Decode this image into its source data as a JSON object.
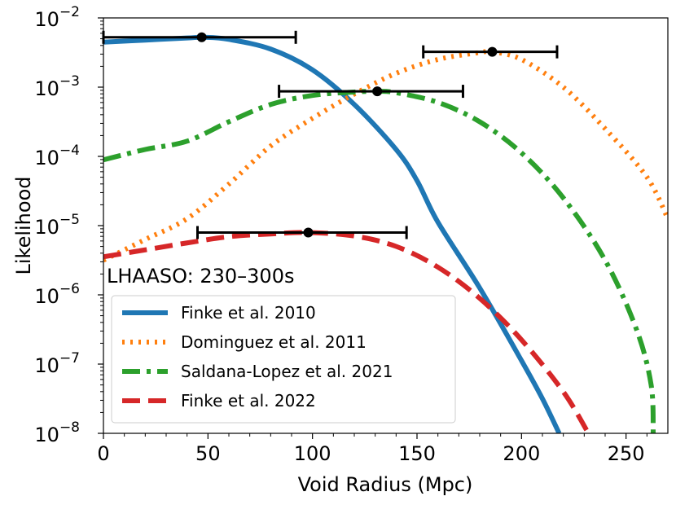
{
  "chart_data": {
    "type": "line",
    "title": "",
    "xlabel": "Void Radius (Mpc)",
    "ylabel": "Likelihood",
    "xlim": [
      0,
      270
    ],
    "ylim_log10": [
      -8,
      -2
    ],
    "yscale": "log",
    "x_ticks": [
      0,
      50,
      100,
      150,
      200,
      250
    ],
    "x_tick_labels": [
      "0",
      "50",
      "100",
      "150",
      "200",
      "250"
    ],
    "y_ticks": [
      {
        "base": "10",
        "exp": "−2",
        "value": -2
      },
      {
        "base": "10",
        "exp": "−3",
        "value": -3
      },
      {
        "base": "10",
        "exp": "−4",
        "value": -4
      },
      {
        "base": "10",
        "exp": "−5",
        "value": -5
      },
      {
        "base": "10",
        "exp": "−6",
        "value": -6
      },
      {
        "base": "10",
        "exp": "−7",
        "value": -7
      },
      {
        "base": "10",
        "exp": "−8",
        "value": -8
      }
    ],
    "annotation": "LHAASO: 230–300s",
    "legend_position": "lower-left",
    "series": [
      {
        "name": "Finke et al. 2010",
        "color": "#1f77b4",
        "style": "solid",
        "points": [
          [
            0,
            -2.35
          ],
          [
            20,
            -2.32
          ],
          [
            40,
            -2.29
          ],
          [
            48,
            -2.28
          ],
          [
            60,
            -2.31
          ],
          [
            80,
            -2.45
          ],
          [
            100,
            -2.75
          ],
          [
            120,
            -3.25
          ],
          [
            140,
            -3.9
          ],
          [
            150,
            -4.35
          ],
          [
            160,
            -4.95
          ],
          [
            180,
            -5.9
          ],
          [
            200,
            -6.95
          ],
          [
            210,
            -7.5
          ],
          [
            218,
            -8.0
          ]
        ],
        "peak": {
          "x": 47,
          "log10y": -2.28,
          "err_low": 0,
          "err_high": 92
        }
      },
      {
        "name": "Dominguez et al. 2011",
        "color": "#ff7f0e",
        "style": "dotted",
        "points": [
          [
            0,
            -5.5
          ],
          [
            20,
            -5.2
          ],
          [
            40,
            -4.9
          ],
          [
            60,
            -4.4
          ],
          [
            80,
            -3.85
          ],
          [
            100,
            -3.45
          ],
          [
            120,
            -3.1
          ],
          [
            140,
            -2.8
          ],
          [
            160,
            -2.6
          ],
          [
            180,
            -2.5
          ],
          [
            186,
            -2.49
          ],
          [
            200,
            -2.6
          ],
          [
            220,
            -3.0
          ],
          [
            240,
            -3.6
          ],
          [
            260,
            -4.3
          ],
          [
            270,
            -4.9
          ]
        ],
        "peak": {
          "x": 186,
          "log10y": -2.49,
          "err_low": 153,
          "err_high": 217
        }
      },
      {
        "name": "Saldana-Lopez et al. 2021",
        "color": "#2ca02c",
        "style": "dashdot",
        "points": [
          [
            0,
            -4.05
          ],
          [
            20,
            -3.9
          ],
          [
            40,
            -3.78
          ],
          [
            60,
            -3.5
          ],
          [
            80,
            -3.25
          ],
          [
            100,
            -3.12
          ],
          [
            120,
            -3.07
          ],
          [
            131,
            -3.06
          ],
          [
            140,
            -3.08
          ],
          [
            160,
            -3.22
          ],
          [
            180,
            -3.5
          ],
          [
            200,
            -3.95
          ],
          [
            220,
            -4.6
          ],
          [
            240,
            -5.5
          ],
          [
            255,
            -6.5
          ],
          [
            262,
            -7.3
          ],
          [
            263,
            -8.0
          ]
        ],
        "peak": {
          "x": 131,
          "log10y": -3.06,
          "err_low": 84,
          "err_high": 172
        }
      },
      {
        "name": "Finke et al. 2022",
        "color": "#d62728",
        "style": "dashed",
        "points": [
          [
            0,
            -5.45
          ],
          [
            20,
            -5.35
          ],
          [
            40,
            -5.25
          ],
          [
            60,
            -5.16
          ],
          [
            80,
            -5.12
          ],
          [
            98,
            -5.1
          ],
          [
            120,
            -5.15
          ],
          [
            140,
            -5.3
          ],
          [
            160,
            -5.6
          ],
          [
            180,
            -6.05
          ],
          [
            200,
            -6.65
          ],
          [
            220,
            -7.4
          ],
          [
            232,
            -8.0
          ]
        ],
        "peak": {
          "x": 98,
          "log10y": -5.1,
          "err_low": 45,
          "err_high": 145
        }
      }
    ]
  }
}
